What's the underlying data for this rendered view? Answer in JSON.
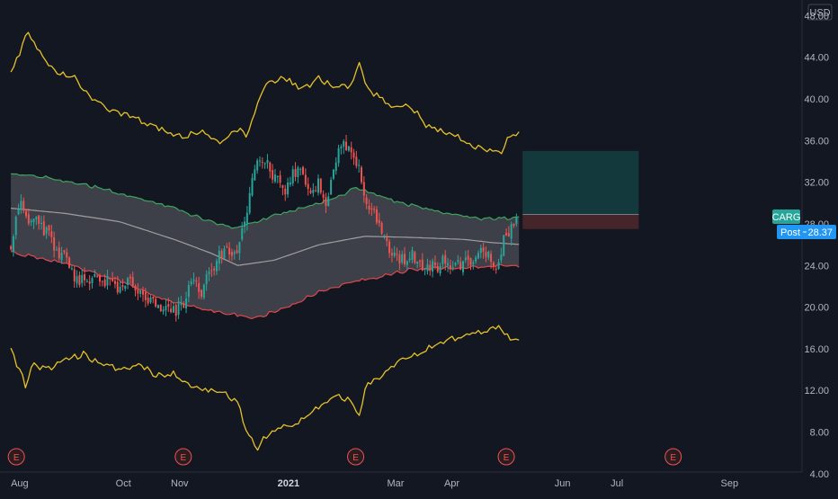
{
  "chart_data": {
    "type": "candlestick",
    "currency": "USD",
    "ticker": "CARG",
    "post_label": "Post",
    "post_price": "28.37",
    "y_ticks": [
      "48.00",
      "44.00",
      "40.00",
      "36.00",
      "32.00",
      "28.00",
      "24.00",
      "20.00",
      "16.00",
      "12.00",
      "8.00",
      "4.00"
    ],
    "y_tick_values": [
      48,
      44,
      40,
      36,
      32,
      28,
      24,
      20,
      16,
      12,
      8,
      4
    ],
    "ylim": [
      2.0,
      49.5
    ],
    "x_ticks": [
      {
        "label": "Aug",
        "day": 0
      },
      {
        "label": "Oct",
        "day": 62
      },
      {
        "label": "Nov",
        "day": 93
      },
      {
        "label": "2021",
        "day": 153
      },
      {
        "label": "Mar",
        "day": 212
      },
      {
        "label": "Apr",
        "day": 243
      },
      {
        "label": "Jun",
        "day": 304
      },
      {
        "label": "Jul",
        "day": 334
      },
      {
        "label": "Sep",
        "day": 396
      }
    ],
    "xlim_days": [
      -6,
      436
    ],
    "earnings_marker": "E",
    "earnings_days": [
      3,
      95,
      190,
      273,
      365
    ],
    "close_path": [
      [
        0,
        26.0
      ],
      [
        5,
        30.5
      ],
      [
        10,
        28.5
      ],
      [
        15,
        28.0
      ],
      [
        22,
        26.5
      ],
      [
        28,
        25.0
      ],
      [
        35,
        23.0
      ],
      [
        42,
        22.5
      ],
      [
        50,
        23.0
      ],
      [
        58,
        21.5
      ],
      [
        65,
        22.5
      ],
      [
        72,
        21.0
      ],
      [
        78,
        20.5
      ],
      [
        85,
        20.0
      ],
      [
        90,
        19.5
      ],
      [
        95,
        20.5
      ],
      [
        100,
        23.0
      ],
      [
        105,
        21.5
      ],
      [
        110,
        23.5
      ],
      [
        115,
        25.0
      ],
      [
        120,
        25.5
      ],
      [
        125,
        25.0
      ],
      [
        128,
        27.5
      ],
      [
        132,
        31.5
      ],
      [
        136,
        34.5
      ],
      [
        140,
        34.0
      ],
      [
        145,
        32.5
      ],
      [
        150,
        31.0
      ],
      [
        155,
        32.5
      ],
      [
        160,
        33.0
      ],
      [
        165,
        31.5
      ],
      [
        170,
        32.0
      ],
      [
        174,
        30.0
      ],
      [
        178,
        33.0
      ],
      [
        182,
        35.5
      ],
      [
        186,
        35.0
      ],
      [
        190,
        34.5
      ],
      [
        193,
        32.0
      ],
      [
        196,
        30.5
      ],
      [
        200,
        29.0
      ],
      [
        205,
        26.5
      ],
      [
        210,
        25.0
      ],
      [
        215,
        24.5
      ],
      [
        220,
        25.0
      ],
      [
        225,
        24.5
      ],
      [
        230,
        23.5
      ],
      [
        235,
        24.0
      ],
      [
        240,
        24.5
      ],
      [
        245,
        24.0
      ],
      [
        250,
        24.5
      ],
      [
        255,
        24.0
      ],
      [
        260,
        25.5
      ],
      [
        265,
        25.0
      ],
      [
        268,
        23.8
      ],
      [
        272,
        26.5
      ],
      [
        276,
        28.0
      ],
      [
        280,
        28.5
      ]
    ],
    "mid_band_path": [
      [
        0,
        29.5
      ],
      [
        30,
        29.0
      ],
      [
        60,
        28.2
      ],
      [
        90,
        26.5
      ],
      [
        110,
        25.2
      ],
      [
        125,
        24.0
      ],
      [
        145,
        24.5
      ],
      [
        170,
        26.0
      ],
      [
        195,
        26.8
      ],
      [
        220,
        26.7
      ],
      [
        250,
        26.5
      ],
      [
        265,
        26.2
      ],
      [
        282,
        26.0
      ]
    ],
    "upper_inner_band_path": [
      [
        0,
        32.8
      ],
      [
        15,
        32.6
      ],
      [
        40,
        31.8
      ],
      [
        70,
        30.5
      ],
      [
        90,
        29.5
      ],
      [
        110,
        28.2
      ],
      [
        125,
        27.6
      ],
      [
        140,
        28.5
      ],
      [
        160,
        29.5
      ],
      [
        180,
        30.5
      ],
      [
        190,
        31.5
      ],
      [
        200,
        30.8
      ],
      [
        215,
        30.0
      ],
      [
        240,
        29.0
      ],
      [
        260,
        28.5
      ],
      [
        282,
        28.6
      ]
    ],
    "lower_inner_band_path": [
      [
        0,
        25.3
      ],
      [
        30,
        24.2
      ],
      [
        60,
        22.5
      ],
      [
        80,
        21.0
      ],
      [
        100,
        20.0
      ],
      [
        120,
        19.4
      ],
      [
        135,
        19.0
      ],
      [
        150,
        19.8
      ],
      [
        170,
        21.5
      ],
      [
        190,
        22.5
      ],
      [
        205,
        23.0
      ],
      [
        220,
        23.6
      ],
      [
        245,
        23.8
      ],
      [
        260,
        23.8
      ],
      [
        270,
        24.0
      ],
      [
        282,
        24.0
      ]
    ],
    "upper_outer_band_path": [
      [
        0,
        42.5
      ],
      [
        5,
        44.5
      ],
      [
        10,
        46.5
      ],
      [
        15,
        44.5
      ],
      [
        25,
        42.5
      ],
      [
        35,
        42.0
      ],
      [
        45,
        40.0
      ],
      [
        55,
        39.0
      ],
      [
        65,
        38.5
      ],
      [
        75,
        37.5
      ],
      [
        85,
        37.0
      ],
      [
        95,
        36.2
      ],
      [
        105,
        37.0
      ],
      [
        115,
        36.0
      ],
      [
        125,
        37.0
      ],
      [
        130,
        36.5
      ],
      [
        134,
        38.5
      ],
      [
        140,
        41.5
      ],
      [
        150,
        42.0
      ],
      [
        160,
        41.0
      ],
      [
        170,
        42.0
      ],
      [
        180,
        41.0
      ],
      [
        188,
        41.5
      ],
      [
        192,
        43.5
      ],
      [
        196,
        41.0
      ],
      [
        205,
        40.0
      ],
      [
        210,
        39.0
      ],
      [
        220,
        39.5
      ],
      [
        228,
        37.5
      ],
      [
        235,
        37.0
      ],
      [
        245,
        36.5
      ],
      [
        255,
        35.5
      ],
      [
        265,
        35.0
      ],
      [
        270,
        34.8
      ],
      [
        275,
        36.5
      ],
      [
        282,
        36.5
      ]
    ],
    "lower_outer_band_path": [
      [
        0,
        16.0
      ],
      [
        8,
        12.5
      ],
      [
        12,
        14.5
      ],
      [
        20,
        14.0
      ],
      [
        30,
        15.0
      ],
      [
        40,
        15.5
      ],
      [
        50,
        14.5
      ],
      [
        60,
        14.0
      ],
      [
        70,
        14.5
      ],
      [
        80,
        13.5
      ],
      [
        90,
        13.5
      ],
      [
        100,
        12.5
      ],
      [
        110,
        12.0
      ],
      [
        120,
        11.5
      ],
      [
        125,
        11.0
      ],
      [
        128,
        9.0
      ],
      [
        132,
        7.5
      ],
      [
        136,
        6.5
      ],
      [
        140,
        7.5
      ],
      [
        150,
        8.5
      ],
      [
        160,
        9.0
      ],
      [
        170,
        10.5
      ],
      [
        180,
        11.5
      ],
      [
        188,
        11.0
      ],
      [
        192,
        9.5
      ],
      [
        196,
        12.5
      ],
      [
        205,
        13.5
      ],
      [
        215,
        15.0
      ],
      [
        225,
        15.5
      ],
      [
        235,
        16.5
      ],
      [
        245,
        17.0
      ],
      [
        255,
        17.5
      ],
      [
        262,
        17.5
      ],
      [
        268,
        18.3
      ],
      [
        272,
        17.5
      ],
      [
        278,
        16.8
      ],
      [
        282,
        16.5
      ]
    ],
    "position_tool": {
      "start_day": 282,
      "end_day": 346,
      "target_price": 35.0,
      "entry_price": 28.9,
      "stop_price": 27.5
    },
    "colors": {
      "background": "#131722",
      "up": "#26a69a",
      "down": "#ef5350",
      "outer_band": "#e6c229",
      "inner_upper": "#3fa55f",
      "inner_lower": "#e0474c",
      "mid_line": "#9e9e9e",
      "band_fill": "#4c4f57",
      "profit_zone": "#14393d",
      "loss_zone": "#45242a",
      "ticker_badge": "#26a69a",
      "post_badge": "#2196f3",
      "axis_text": "#b2b5be",
      "earnings": "#ef5350"
    }
  }
}
